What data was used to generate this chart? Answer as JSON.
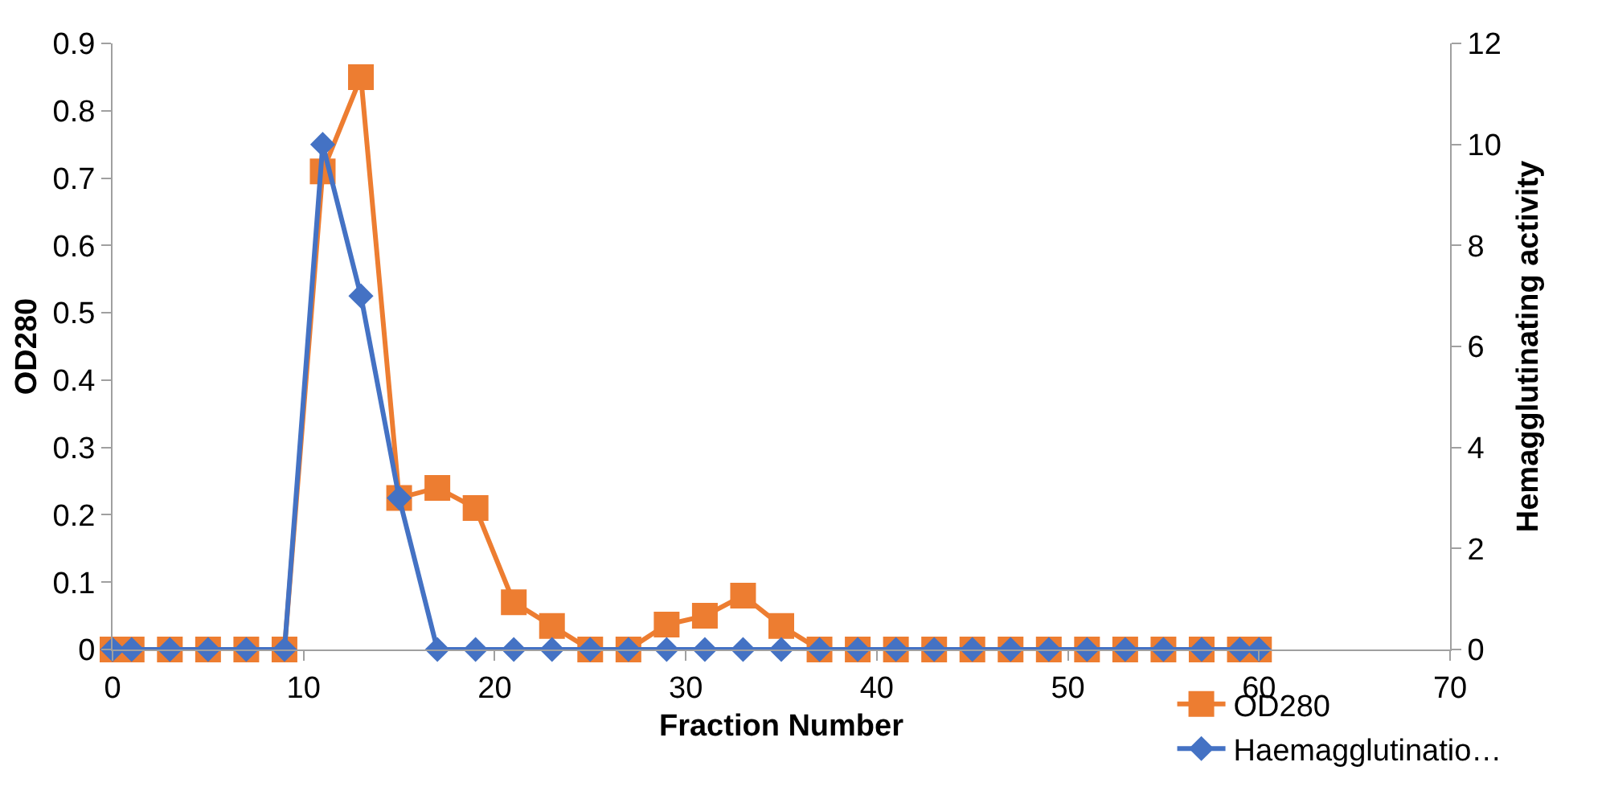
{
  "chart_data": {
    "type": "line",
    "xlabel": "Fraction Number",
    "ylabel": "OD280",
    "y2label": "Hemagglutinating activity",
    "x": [
      0,
      1,
      3,
      5,
      7,
      9,
      11,
      13,
      15,
      17,
      19,
      21,
      23,
      25,
      27,
      29,
      31,
      33,
      35,
      37,
      39,
      41,
      43,
      45,
      47,
      49,
      51,
      53,
      55,
      57,
      59,
      60
    ],
    "series": [
      {
        "name": "OD280",
        "color": "#ed7d31",
        "marker": "square",
        "values": [
          0,
          0,
          0,
          0,
          0,
          0,
          0.71,
          0.85,
          0.225,
          0.24,
          0.21,
          0.07,
          0.035,
          0,
          0,
          0.037,
          0.05,
          0.08,
          0.035,
          0,
          0,
          0,
          0,
          0,
          0,
          0,
          0,
          0,
          0,
          0,
          0,
          0
        ]
      },
      {
        "name": "Haemagglutinatio…",
        "color": "#4472c4",
        "marker": "diamond",
        "axis": "y2",
        "values": [
          0,
          0,
          0,
          0,
          0,
          0,
          10,
          7,
          3,
          0,
          0,
          0,
          0,
          0,
          0,
          0,
          0,
          0,
          0,
          0,
          0,
          0,
          0,
          0,
          0,
          0,
          0,
          0,
          0,
          0,
          0,
          0
        ]
      }
    ],
    "xlim": [
      0,
      70
    ],
    "xticks": [
      0,
      10,
      20,
      30,
      40,
      50,
      60,
      70
    ],
    "ylim": [
      0,
      0.9
    ],
    "yticks": [
      0,
      0.1,
      0.2,
      0.3,
      0.4,
      0.5,
      0.6,
      0.7,
      0.8,
      0.9
    ],
    "y2lim": [
      0,
      12
    ],
    "y2ticks": [
      0,
      2,
      4,
      6,
      8,
      10,
      12
    ],
    "grid": false,
    "legend": "bottom right",
    "line_style": "solid"
  }
}
